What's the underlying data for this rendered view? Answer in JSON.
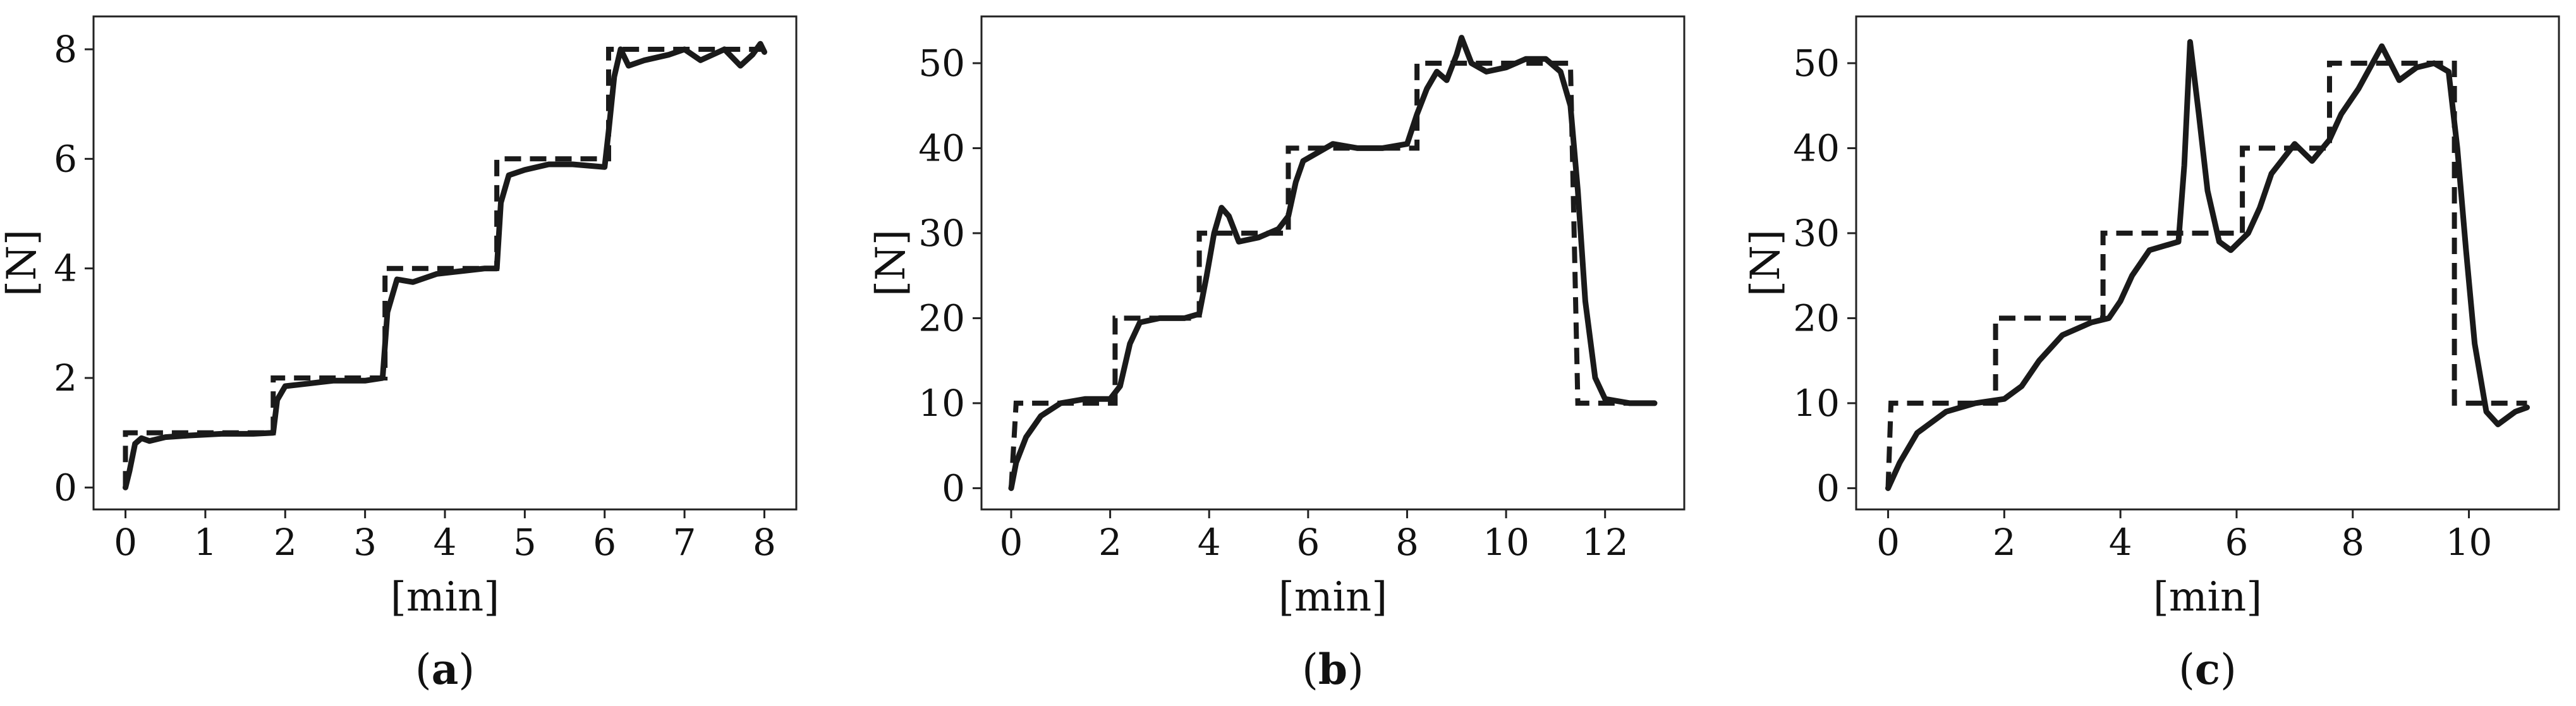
{
  "chart_data": [
    {
      "type": "line",
      "panel_label": "a",
      "xlabel": "[min]",
      "ylabel": "[N]",
      "xlim": [
        -0.4,
        8.4
      ],
      "ylim": [
        -0.4,
        8.6
      ],
      "xticks": [
        0,
        1,
        2,
        3,
        4,
        5,
        6,
        7,
        8
      ],
      "yticks": [
        0,
        2,
        4,
        6,
        8
      ],
      "grid": false,
      "series": [
        {
          "style": "solid",
          "points": [
            [
              0,
              0
            ],
            [
              0.05,
              0.3
            ],
            [
              0.12,
              0.8
            ],
            [
              0.2,
              0.9
            ],
            [
              0.3,
              0.85
            ],
            [
              0.5,
              0.92
            ],
            [
              0.8,
              0.95
            ],
            [
              1.2,
              0.98
            ],
            [
              1.6,
              0.98
            ],
            [
              1.85,
              1.0
            ],
            [
              1.9,
              1.6
            ],
            [
              2.0,
              1.85
            ],
            [
              2.3,
              1.9
            ],
            [
              2.6,
              1.95
            ],
            [
              3.0,
              1.95
            ],
            [
              3.22,
              2.0
            ],
            [
              3.28,
              3.2
            ],
            [
              3.4,
              3.8
            ],
            [
              3.6,
              3.75
            ],
            [
              3.9,
              3.9
            ],
            [
              4.2,
              3.95
            ],
            [
              4.5,
              4.0
            ],
            [
              4.65,
              4.0
            ],
            [
              4.7,
              5.2
            ],
            [
              4.8,
              5.7
            ],
            [
              5.0,
              5.8
            ],
            [
              5.3,
              5.9
            ],
            [
              5.6,
              5.9
            ],
            [
              6.0,
              5.85
            ],
            [
              6.05,
              6.5
            ],
            [
              6.12,
              7.5
            ],
            [
              6.2,
              8.0
            ],
            [
              6.3,
              7.7
            ],
            [
              6.5,
              7.8
            ],
            [
              6.8,
              7.9
            ],
            [
              7.0,
              8.0
            ],
            [
              7.2,
              7.8
            ],
            [
              7.5,
              8.0
            ],
            [
              7.7,
              7.7
            ],
            [
              7.85,
              7.9
            ],
            [
              7.95,
              8.1
            ],
            [
              8.0,
              7.95
            ]
          ]
        },
        {
          "style": "dashed",
          "points": [
            [
              0,
              0
            ],
            [
              0,
              1
            ],
            [
              1.85,
              1
            ],
            [
              1.85,
              2
            ],
            [
              3.25,
              2
            ],
            [
              3.25,
              4
            ],
            [
              4.65,
              4
            ],
            [
              4.65,
              6
            ],
            [
              6.05,
              6
            ],
            [
              6.05,
              8
            ],
            [
              8,
              8
            ]
          ]
        }
      ]
    },
    {
      "type": "line",
      "panel_label": "b",
      "xlabel": "[min]",
      "ylabel": "[N]",
      "xlim": [
        -0.6,
        13.6
      ],
      "ylim": [
        -2.5,
        55.5
      ],
      "xticks": [
        0,
        2,
        4,
        6,
        8,
        10,
        12
      ],
      "yticks": [
        0,
        10,
        20,
        30,
        40,
        50
      ],
      "grid": false,
      "series": [
        {
          "style": "solid",
          "points": [
            [
              0,
              0
            ],
            [
              0.1,
              3
            ],
            [
              0.3,
              6
            ],
            [
              0.6,
              8.5
            ],
            [
              1.0,
              10
            ],
            [
              1.5,
              10.5
            ],
            [
              2.0,
              10.5
            ],
            [
              2.2,
              12
            ],
            [
              2.4,
              17
            ],
            [
              2.6,
              19.5
            ],
            [
              3.0,
              20
            ],
            [
              3.5,
              20
            ],
            [
              3.8,
              20.5
            ],
            [
              3.95,
              25
            ],
            [
              4.1,
              30
            ],
            [
              4.25,
              33
            ],
            [
              4.4,
              32
            ],
            [
              4.6,
              29
            ],
            [
              5.0,
              29.5
            ],
            [
              5.4,
              30.5
            ],
            [
              5.6,
              32
            ],
            [
              5.75,
              36
            ],
            [
              5.9,
              38.5
            ],
            [
              6.2,
              39.5
            ],
            [
              6.5,
              40.5
            ],
            [
              7.0,
              40
            ],
            [
              7.5,
              40
            ],
            [
              8.0,
              40.5
            ],
            [
              8.2,
              44
            ],
            [
              8.4,
              47
            ],
            [
              8.6,
              49
            ],
            [
              8.8,
              48
            ],
            [
              9.0,
              51
            ],
            [
              9.1,
              53
            ],
            [
              9.3,
              50
            ],
            [
              9.6,
              49
            ],
            [
              10.0,
              49.5
            ],
            [
              10.4,
              50.5
            ],
            [
              10.8,
              50.5
            ],
            [
              11.1,
              49
            ],
            [
              11.3,
              45
            ],
            [
              11.45,
              35
            ],
            [
              11.6,
              22
            ],
            [
              11.8,
              13
            ],
            [
              12.0,
              10.5
            ],
            [
              12.5,
              10
            ],
            [
              13.0,
              10
            ]
          ]
        },
        {
          "style": "dashed",
          "points": [
            [
              0,
              0
            ],
            [
              0.1,
              10
            ],
            [
              2.1,
              10
            ],
            [
              2.1,
              20
            ],
            [
              3.8,
              20
            ],
            [
              3.8,
              30
            ],
            [
              5.6,
              30
            ],
            [
              5.6,
              40
            ],
            [
              8.2,
              40
            ],
            [
              8.2,
              50
            ],
            [
              11.3,
              50
            ],
            [
              11.45,
              10
            ],
            [
              13.0,
              10
            ]
          ]
        }
      ]
    },
    {
      "type": "line",
      "panel_label": "c",
      "xlabel": "[min]",
      "ylabel": "[N]",
      "xlim": [
        -0.55,
        11.55
      ],
      "ylim": [
        -2.5,
        55.5
      ],
      "xticks": [
        0,
        2,
        4,
        6,
        8,
        10
      ],
      "yticks": [
        0,
        10,
        20,
        30,
        40,
        50
      ],
      "grid": false,
      "series": [
        {
          "style": "solid",
          "points": [
            [
              0,
              0
            ],
            [
              0.2,
              3
            ],
            [
              0.5,
              6.5
            ],
            [
              1.0,
              9
            ],
            [
              1.5,
              10
            ],
            [
              2.0,
              10.5
            ],
            [
              2.3,
              12
            ],
            [
              2.6,
              15
            ],
            [
              3.0,
              18
            ],
            [
              3.5,
              19.5
            ],
            [
              3.8,
              20
            ],
            [
              4.0,
              22
            ],
            [
              4.2,
              25
            ],
            [
              4.5,
              28
            ],
            [
              5.0,
              29
            ],
            [
              5.1,
              38
            ],
            [
              5.2,
              52.5
            ],
            [
              5.35,
              44
            ],
            [
              5.5,
              35
            ],
            [
              5.7,
              29
            ],
            [
              5.9,
              28
            ],
            [
              6.2,
              30
            ],
            [
              6.4,
              33
            ],
            [
              6.6,
              37
            ],
            [
              7.0,
              40.5
            ],
            [
              7.3,
              38.5
            ],
            [
              7.6,
              41
            ],
            [
              7.8,
              44
            ],
            [
              8.1,
              47
            ],
            [
              8.5,
              52
            ],
            [
              8.8,
              48
            ],
            [
              9.1,
              49.5
            ],
            [
              9.4,
              50
            ],
            [
              9.65,
              49
            ],
            [
              9.8,
              40
            ],
            [
              9.95,
              28
            ],
            [
              10.1,
              17
            ],
            [
              10.3,
              9
            ],
            [
              10.5,
              7.5
            ],
            [
              10.8,
              9
            ],
            [
              11.0,
              9.5
            ]
          ]
        },
        {
          "style": "dashed",
          "points": [
            [
              0,
              0
            ],
            [
              0.05,
              10
            ],
            [
              1.85,
              10
            ],
            [
              1.85,
              20
            ],
            [
              3.7,
              20
            ],
            [
              3.7,
              30
            ],
            [
              6.1,
              30
            ],
            [
              6.1,
              40
            ],
            [
              7.6,
              40
            ],
            [
              7.6,
              50
            ],
            [
              9.75,
              50
            ],
            [
              9.75,
              10
            ],
            [
              11.0,
              10
            ]
          ]
        }
      ]
    }
  ]
}
